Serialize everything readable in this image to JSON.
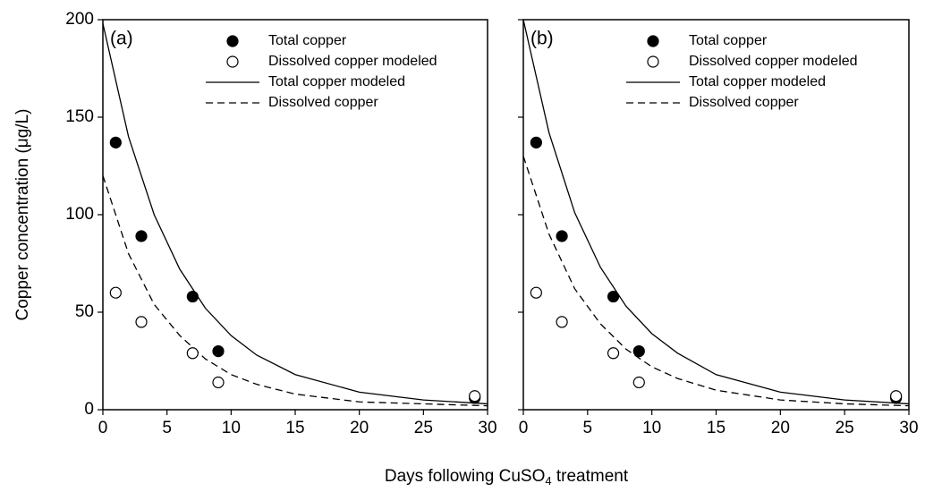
{
  "chart_data": [
    {
      "type": "scatter",
      "panel_label": "(a)",
      "y_label": "Copper concentration (μg/L)",
      "x_label": {
        "text": "Days following CuSO",
        "sub": "4",
        "after": " treatment"
      },
      "xlim": [
        0,
        30
      ],
      "xticks": [
        0,
        5,
        10,
        15,
        20,
        25,
        30
      ],
      "ylim": [
        0,
        200
      ],
      "yticks": [
        0,
        50,
        100,
        150,
        200
      ],
      "series": [
        {
          "name": "Total copper",
          "style": "filled",
          "color": "#000000",
          "x": [
            1,
            3,
            7,
            9,
            29
          ],
          "values": [
            137,
            89,
            58,
            30,
            6
          ]
        },
        {
          "name": "Dissolved copper modeled",
          "style": "open",
          "color": "#000000",
          "x": [
            1,
            3,
            7,
            9,
            29
          ],
          "values": [
            60,
            45,
            29,
            14,
            7
          ]
        },
        {
          "name": "Total copper modeled",
          "style": "solid",
          "color": "#000000",
          "x": [
            0,
            2,
            4,
            6,
            8,
            10,
            12,
            15,
            20,
            25,
            30
          ],
          "values": [
            198,
            140,
            100,
            72,
            52,
            38,
            28,
            18,
            9,
            5,
            3
          ]
        },
        {
          "name": "Dissolved copper",
          "style": "dashed",
          "color": "#000000",
          "x": [
            0,
            2,
            4,
            6,
            8,
            10,
            12,
            15,
            20,
            25,
            30
          ],
          "values": [
            120,
            80,
            54,
            38,
            26,
            18,
            13,
            8,
            4,
            3,
            2
          ]
        }
      ]
    },
    {
      "type": "scatter",
      "panel_label": "(b)",
      "xlim": [
        0,
        30
      ],
      "xticks": [
        0,
        5,
        10,
        15,
        20,
        25,
        30
      ],
      "ylim": [
        0,
        200
      ],
      "yticks": [
        0,
        50,
        100,
        150,
        200
      ],
      "series": [
        {
          "name": "Total copper",
          "style": "filled",
          "color": "#000000",
          "x": [
            1,
            3,
            7,
            9,
            29
          ],
          "values": [
            137,
            89,
            58,
            30,
            6
          ]
        },
        {
          "name": "Dissolved copper modeled",
          "style": "open",
          "color": "#000000",
          "x": [
            1,
            3,
            7,
            9,
            29
          ],
          "values": [
            60,
            45,
            29,
            14,
            7
          ]
        },
        {
          "name": "Total copper modeled",
          "style": "solid",
          "color": "#000000",
          "x": [
            0,
            2,
            4,
            6,
            8,
            10,
            12,
            15,
            20,
            25,
            30
          ],
          "values": [
            200,
            142,
            101,
            73,
            53,
            39,
            29,
            18,
            9,
            5,
            3
          ]
        },
        {
          "name": "Dissolved copper",
          "style": "dashed",
          "color": "#000000",
          "x": [
            0,
            2,
            4,
            6,
            8,
            10,
            12,
            15,
            20,
            25,
            30
          ],
          "values": [
            130,
            90,
            62,
            44,
            31,
            22,
            16,
            10,
            5,
            3,
            2
          ]
        }
      ]
    }
  ]
}
